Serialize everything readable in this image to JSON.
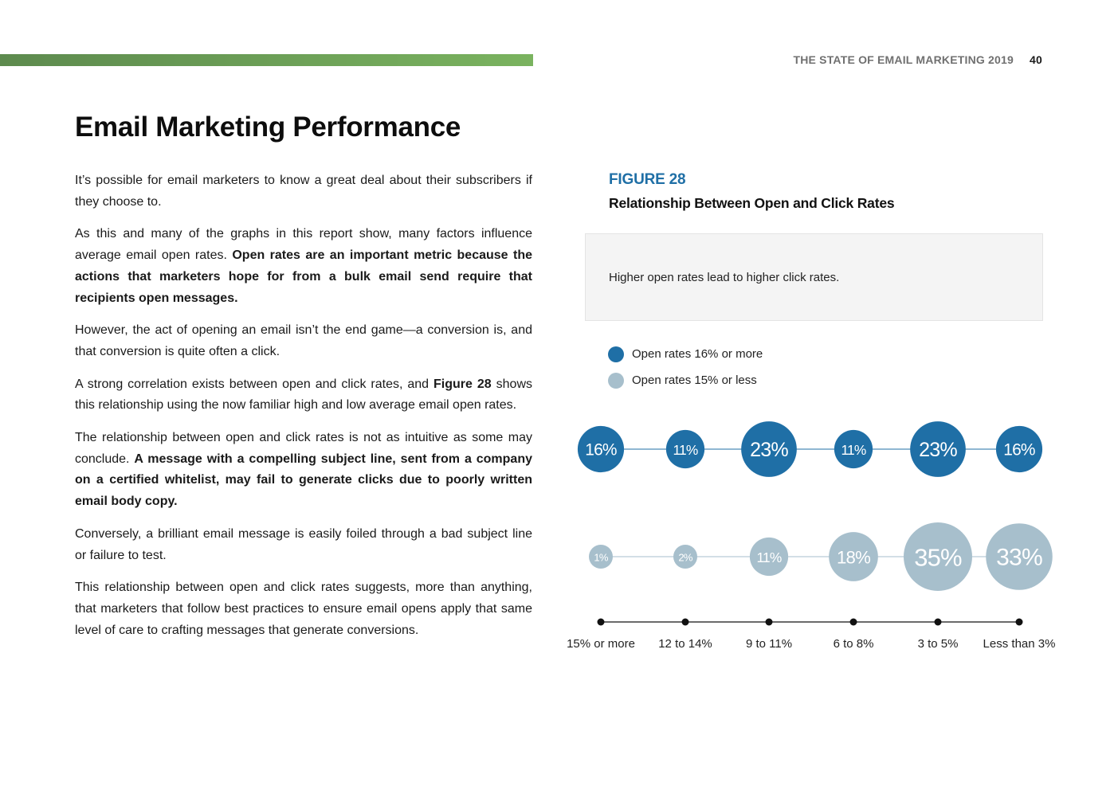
{
  "header": {
    "doc_title": "THE STATE OF EMAIL MARKETING 2019",
    "page_number": "40",
    "accent_color": "#6ea258"
  },
  "page_title": "Email Marketing Performance",
  "paragraphs": [
    [
      {
        "text": "It’s possible for email marketers to know a great deal about their subscribers if they choose to."
      }
    ],
    [
      {
        "text": "As this and many of the graphs in this report show, many factors influence average email open rates. "
      },
      {
        "text": "Open rates are an important metric because the actions that marketers hope for from a bulk email send require that recipients open messages.",
        "bold": true
      }
    ],
    [
      {
        "text": "However, the act of opening an email isn’t the end game—a conversion is, and that conversion is quite often a click."
      }
    ],
    [
      {
        "text": "A strong correlation exists between open and click rates, and "
      },
      {
        "text": "Figure 28",
        "bold": true
      },
      {
        "text": " shows this relationship using the now familiar high and low average email open rates."
      }
    ],
    [
      {
        "text": "The relationship between open and click rates is not as intuitive as some may conclude. "
      },
      {
        "text": "A message with a compelling subject line, sent from a company on a certified whitelist, may fail to generate clicks due to poorly written email body copy.",
        "bold": true
      }
    ],
    [
      {
        "text": "Conversely, a brilliant email message is easily foiled through a bad subject line or failure to test."
      }
    ],
    [
      {
        "text": "This relationship between open and click rates suggests, more than anything, that marketers that follow best practices to ensure email opens apply that same level of care to crafting messages that generate conversions."
      }
    ]
  ],
  "figure": {
    "label": "FIGURE 28",
    "title": "Relationship Between Open and Click Rates",
    "callout": "Higher open rates lead to higher click rates."
  },
  "chart_data": {
    "type": "bubble",
    "categories": [
      "15% or more",
      "12 to 14%",
      "9 to 11%",
      "6 to 8%",
      "3 to 5%",
      "Less than 3%"
    ],
    "series": [
      {
        "name": "Open rates 16% or more",
        "color": "#1f6fa6",
        "values": [
          16,
          11,
          23,
          11,
          23,
          16
        ],
        "labels": [
          "16%",
          "11%",
          "23%",
          "11%",
          "23%",
          "16%"
        ]
      },
      {
        "name": "Open rates 15% or less",
        "color": "#a7bfcc",
        "values": [
          1,
          2,
          11,
          18,
          35,
          33
        ],
        "labels": [
          "1%",
          "2%",
          "11%",
          "18%",
          "35%",
          "33%"
        ]
      }
    ]
  }
}
